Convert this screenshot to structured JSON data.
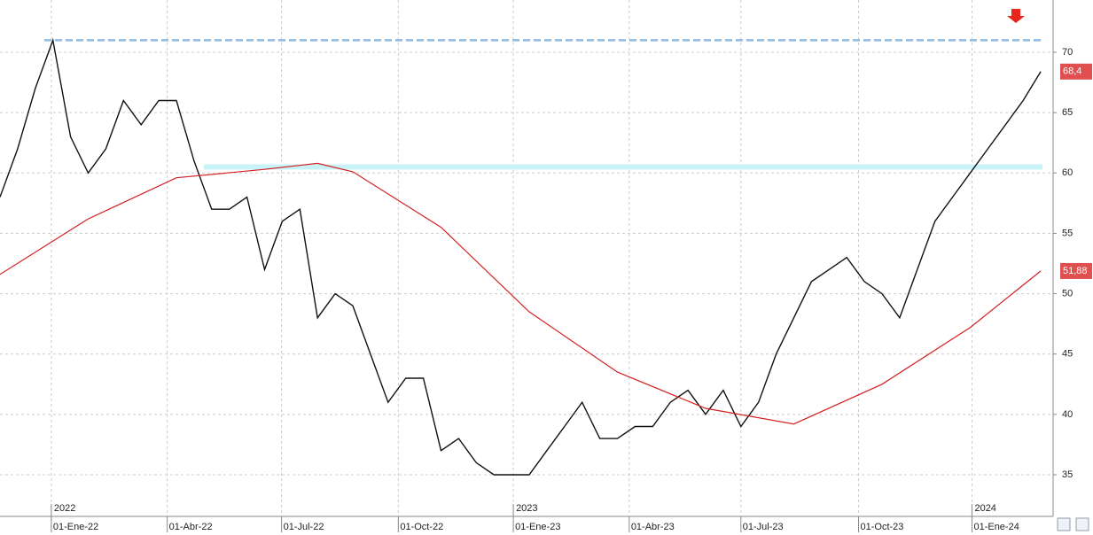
{
  "chart_data": {
    "type": "line",
    "xlim": [
      0,
      59.7
    ],
    "ylim": [
      31.55,
      74.33
    ],
    "yticks": [
      35,
      40,
      45,
      50,
      55,
      60,
      65,
      70
    ],
    "xticks": [
      {
        "value": 2.91,
        "label": "01-Ene-22"
      },
      {
        "value": 9.48,
        "label": "01-Abr-22"
      },
      {
        "value": 15.96,
        "label": "01-Jul-22"
      },
      {
        "value": 22.58,
        "label": "01-Oct-22"
      },
      {
        "value": 29.1,
        "label": "01-Ene-23"
      },
      {
        "value": 35.67,
        "label": "01-Abr-23"
      },
      {
        "value": 42.0,
        "label": "01-Jul-23"
      },
      {
        "value": 48.67,
        "label": "01-Oct-23"
      },
      {
        "value": 55.1,
        "label": "01-Ene-24"
      }
    ],
    "year_ticks": [
      {
        "value": 2.91,
        "label": "2022"
      },
      {
        "value": 29.1,
        "label": "2023"
      },
      {
        "value": 55.1,
        "label": "2024"
      }
    ],
    "grid": true,
    "levels": [
      {
        "value": 71,
        "color": "#8fb8e8"
      },
      {
        "value": 60.5,
        "color": "#c8f4f8"
      }
    ],
    "series": [
      {
        "color": "#111111",
        "last_value_label": "68,4",
        "x": [
          0,
          1,
          2,
          3,
          4,
          5,
          6,
          7,
          8,
          9,
          10,
          11,
          12,
          13,
          14,
          15,
          16,
          17,
          18,
          19,
          20,
          21,
          22,
          23,
          24,
          25,
          26,
          27,
          28,
          29,
          30,
          31,
          32,
          33,
          34,
          35,
          36,
          37,
          38,
          39,
          40,
          41,
          42,
          43,
          44,
          45,
          46,
          47,
          48,
          49,
          50,
          51,
          52,
          53,
          54,
          55,
          56,
          57,
          58,
          59
        ],
        "values": [
          58,
          62,
          67,
          71,
          63,
          60,
          62,
          66,
          64,
          66,
          66,
          61,
          57,
          57,
          58,
          52,
          56,
          57,
          48,
          50,
          49,
          45,
          41,
          43,
          43,
          37,
          38,
          36,
          35,
          35,
          35,
          37,
          39,
          41,
          38,
          38,
          39,
          39,
          41,
          42,
          40,
          42,
          39,
          41,
          45,
          48,
          51,
          52,
          53,
          51,
          50,
          48,
          52,
          56,
          58,
          60,
          62,
          64,
          66,
          68.4
        ]
      },
      {
        "color": "#d42020",
        "last_value_label": "51,88",
        "x": [
          0,
          5,
          10,
          15,
          18,
          20,
          25,
          30,
          35,
          40,
          45,
          50,
          55,
          59
        ],
        "values": [
          51.6,
          56.2,
          59.6,
          60.3,
          60.8,
          60.1,
          55.5,
          48.5,
          43.5,
          40.5,
          39.2,
          42.5,
          47.2,
          51.88
        ]
      }
    ]
  }
}
